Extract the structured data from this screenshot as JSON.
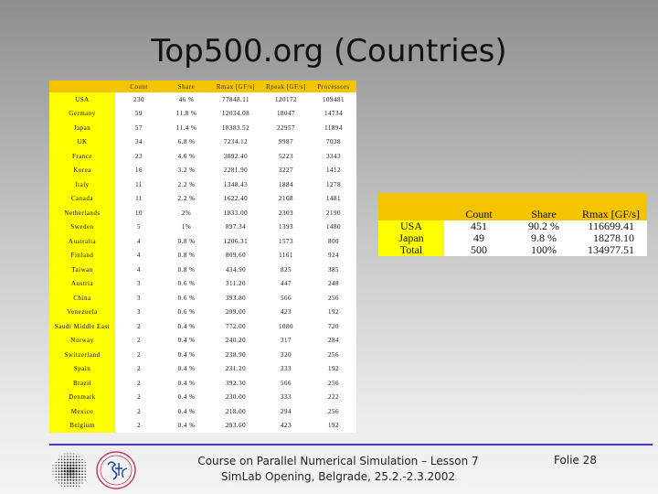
{
  "title": "Top500.org (Countries)",
  "big_table": {
    "headers": [
      "Count",
      "Share",
      "Rmax [GF/s]",
      "Rpeak [GF/s]",
      "Processors"
    ],
    "rows": [
      {
        "country": "USA",
        "count": "230",
        "share": "46 %",
        "rmax": "77848.11",
        "rpeak": "120172",
        "proc": "109481"
      },
      {
        "country": "Germany",
        "count": "59",
        "share": "11.8 %",
        "rmax": "12034.08",
        "rpeak": "18047",
        "proc": "14734"
      },
      {
        "country": "Japan",
        "count": "57",
        "share": "11.4 %",
        "rmax": "18383.52",
        "rpeak": "22957",
        "proc": "11894"
      },
      {
        "country": "UK",
        "count": "34",
        "share": "6.8 %",
        "rmax": "7234.12",
        "rpeak": "9987",
        "proc": "7038"
      },
      {
        "country": "France",
        "count": "23",
        "share": "4.6 %",
        "rmax": "3892.40",
        "rpeak": "5223",
        "proc": "3343"
      },
      {
        "country": "Korea",
        "count": "16",
        "share": "3.2 %",
        "rmax": "2281.90",
        "rpeak": "3227",
        "proc": "1412"
      },
      {
        "country": "Italy",
        "count": "11",
        "share": "2.2 %",
        "rmax": "1348.43",
        "rpeak": "1884",
        "proc": "1278"
      },
      {
        "country": "Canada",
        "count": "11",
        "share": "2.2 %",
        "rmax": "1622.40",
        "rpeak": "2168",
        "proc": "1481"
      },
      {
        "country": "Netherlands",
        "count": "10",
        "share": "2%",
        "rmax": "1833.00",
        "rpeak": "2303",
        "proc": "2190"
      },
      {
        "country": "Sweden",
        "count": "5",
        "share": "1%",
        "rmax": "897.34",
        "rpeak": "1393",
        "proc": "1480"
      },
      {
        "country": "Australia",
        "count": "4",
        "share": "0.8 %",
        "rmax": "1206.31",
        "rpeak": "1573",
        "proc": "800"
      },
      {
        "country": "Finland",
        "count": "4",
        "share": "0.8 %",
        "rmax": "809.60",
        "rpeak": "1161",
        "proc": "924"
      },
      {
        "country": "Taiwan",
        "count": "4",
        "share": "0.8 %",
        "rmax": "434.90",
        "rpeak": "825",
        "proc": "385"
      },
      {
        "country": "Austria",
        "count": "3",
        "share": "0.6 %",
        "rmax": "311.20",
        "rpeak": "447",
        "proc": "248"
      },
      {
        "country": "China",
        "count": "3",
        "share": "0.6 %",
        "rmax": "393.80",
        "rpeak": "566",
        "proc": "256"
      },
      {
        "country": "Venezuela",
        "count": "3",
        "share": "0.6 %",
        "rmax": "299.00",
        "rpeak": "423",
        "proc": "192"
      },
      {
        "country": "Saudi Middle East",
        "count": "2",
        "share": "0.4 %",
        "rmax": "772.00",
        "rpeak": "1080",
        "proc": "720"
      },
      {
        "country": "Norway",
        "count": "2",
        "share": "0.4 %",
        "rmax": "240.20",
        "rpeak": "317",
        "proc": "284"
      },
      {
        "country": "Switzerland",
        "count": "2",
        "share": "0.4 %",
        "rmax": "238.90",
        "rpeak": "320",
        "proc": "256"
      },
      {
        "country": "Spain",
        "count": "2",
        "share": "0.4 %",
        "rmax": "231.20",
        "rpeak": "333",
        "proc": "192"
      },
      {
        "country": "Brazil",
        "count": "2",
        "share": "0.4 %",
        "rmax": "392.30",
        "rpeak": "566",
        "proc": "256"
      },
      {
        "country": "Denmark",
        "count": "2",
        "share": "0.4 %",
        "rmax": "230.00",
        "rpeak": "333",
        "proc": "222"
      },
      {
        "country": "Mexico",
        "count": "2",
        "share": "0.4 %",
        "rmax": "218.00",
        "rpeak": "294",
        "proc": "256"
      },
      {
        "country": "Belgium",
        "count": "2",
        "share": "0.4 %",
        "rmax": "293.60",
        "rpeak": "423",
        "proc": "192"
      }
    ]
  },
  "small_table": {
    "headers": [
      "Count",
      "Share",
      "Rmax [GF/s]"
    ],
    "rows": [
      {
        "country": "USA",
        "count": "451",
        "share": "90.2 %",
        "rmax": "116699.41"
      },
      {
        "country": "Japan",
        "count": "49",
        "share": "9.8 %",
        "rmax": "18278.10"
      },
      {
        "country": "Total",
        "count": "500",
        "share": "100%",
        "rmax": "134977.51"
      }
    ]
  },
  "footer": {
    "line1": "Course on Parallel Numerical Simulation – Lesson 7",
    "line2": "SimLab Opening, Belgrade, 25.2.-2.3.2002",
    "folie": "Folie 28"
  },
  "colors": {
    "header_orange": "#f5c400",
    "country_yellow": "#ffff00",
    "rule_blue": "#3b3be0"
  }
}
